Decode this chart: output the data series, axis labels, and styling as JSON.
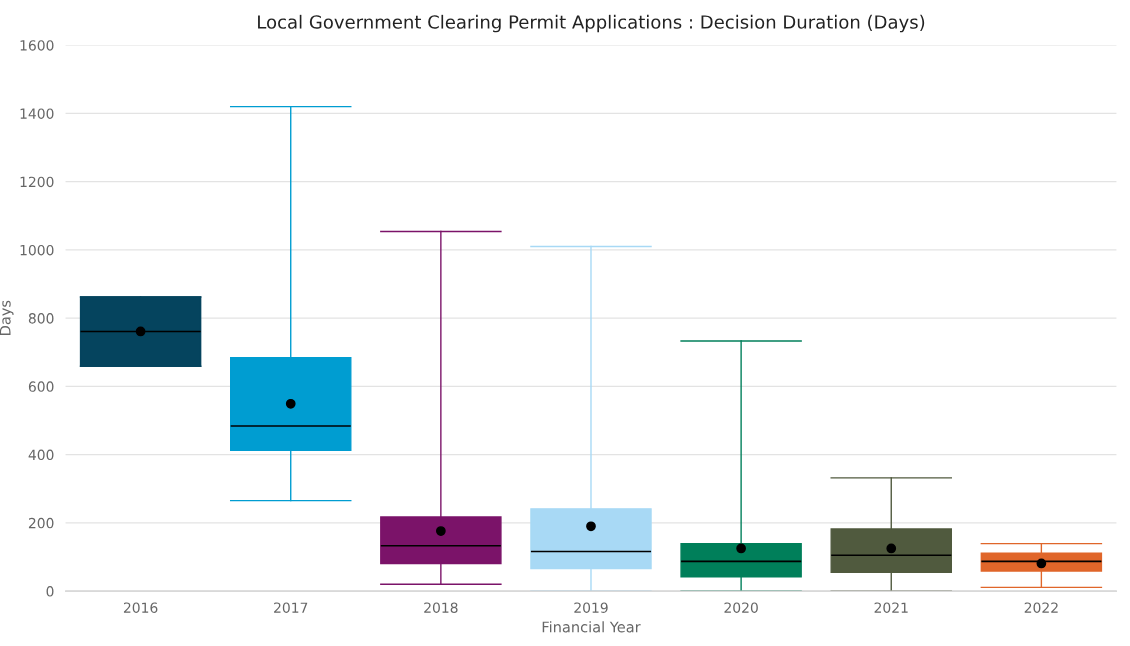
{
  "chart_data": {
    "type": "box",
    "title": "Local Government Clearing Permit Applications : Decision Duration (Days)",
    "xlabel": "Financial Year",
    "ylabel": "Days",
    "categories": [
      "2016",
      "2017",
      "2018",
      "2019",
      "2020",
      "2021",
      "2022"
    ],
    "colors": [
      "#05445e",
      "#009dd1",
      "#7b1369",
      "#a8d9f5",
      "#007f5a",
      "#505a3e",
      "#e0662a"
    ],
    "boxes": [
      {
        "low": 659,
        "q1": 659,
        "median": 761,
        "q3": 862,
        "high": 862,
        "mean": 761
      },
      {
        "low": 265,
        "q1": 413,
        "median": 484,
        "q3": 684,
        "high": 1420,
        "mean": 549
      },
      {
        "low": 20,
        "q1": 81,
        "median": 133,
        "q3": 217,
        "high": 1054,
        "mean": 176
      },
      {
        "low": 0,
        "q1": 66,
        "median": 116,
        "q3": 241,
        "high": 1010,
        "mean": 190
      },
      {
        "low": 0,
        "q1": 42,
        "median": 87,
        "q3": 139,
        "high": 733,
        "mean": 125
      },
      {
        "low": 0,
        "q1": 55,
        "median": 105,
        "q3": 182,
        "high": 332,
        "mean": 125
      },
      {
        "low": 11,
        "q1": 59,
        "median": 87,
        "q3": 111,
        "high": 139,
        "mean": 81
      }
    ],
    "ylim": [
      0,
      1600
    ],
    "yticks": [
      0,
      200,
      400,
      600,
      800,
      1000,
      1200,
      1400,
      1600
    ],
    "grid": "y"
  }
}
